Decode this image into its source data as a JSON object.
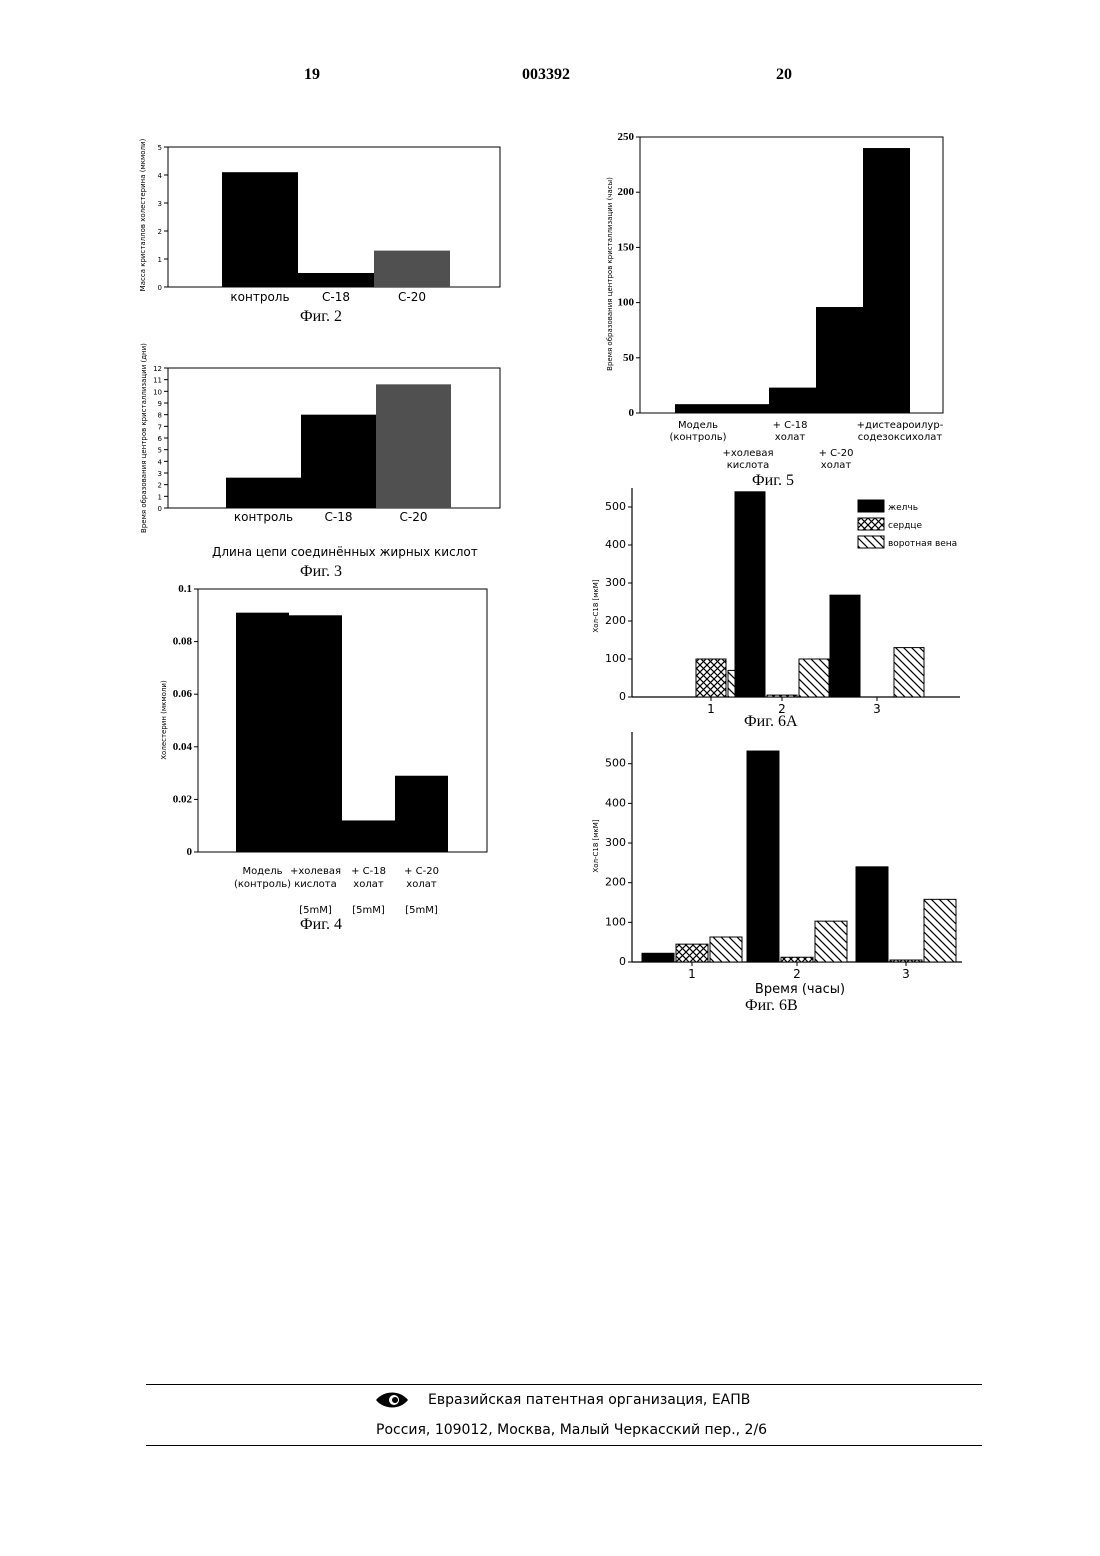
{
  "header": {
    "page_left": "19",
    "patent_number": "003392",
    "page_right": "20"
  },
  "captions": {
    "fig2": "Фиг. 2",
    "fig3": "Фиг. 3",
    "fig3_xlabel": "Длина цепи соединённых жирных кислот",
    "fig4": "Фиг. 4",
    "fig5": "Фиг. 5",
    "fig6a": "Фиг. 6А",
    "fig6b": "Фиг. 6В"
  },
  "footer": {
    "org": "Евразийская патентная организация, ЕАПВ",
    "address": "Россия, 109012, Москва, Малый Черкасский пер., 2/6"
  },
  "colors": {
    "bar": "#000000",
    "bar_gray": "#505050",
    "axis": "#000000"
  },
  "chart_data": [
    {
      "id": "fig2",
      "type": "bar",
      "ylabel": "Масса кристаллов холестерина (мкмоли)",
      "ylim": [
        0,
        5
      ],
      "yticks": [
        "0",
        "1",
        "2",
        "3",
        "4",
        "5"
      ],
      "categories": [
        "контроль",
        "C-18",
        "C-20"
      ],
      "values": [
        4.1,
        0.5,
        1.3
      ]
    },
    {
      "id": "fig3",
      "type": "bar",
      "ylabel": "Время образования центров кристаллизации (дни)",
      "xlabel": "Длина цепи соединённых жирных кислот",
      "ylim": [
        0,
        12
      ],
      "yticks": [
        "0",
        "1",
        "2",
        "3",
        "4",
        "5",
        "6",
        "7",
        "8",
        "9",
        "10",
        "11",
        "12"
      ],
      "categories": [
        "контроль",
        "C-18",
        "C-20"
      ],
      "values": [
        2.6,
        8,
        10.6
      ]
    },
    {
      "id": "fig4",
      "type": "bar",
      "ylabel": "Холестерин (мкмоли)",
      "ylim": [
        0,
        0.1
      ],
      "yticks": [
        "0",
        "0.02",
        "0.04",
        "0.06",
        "0.08",
        "0.1"
      ],
      "categories": [
        "Модель (контроль)",
        "+холевая кислота",
        "+ C-18 холат",
        "+ C-20 холат"
      ],
      "category_lines": [
        [
          "Модель",
          "(контроль)"
        ],
        [
          "+холевая",
          "кислота"
        ],
        [
          "+ C-18",
          "холат"
        ],
        [
          "+ C-20",
          "холат"
        ]
      ],
      "sublabels": [
        "",
        "[5mM]",
        "[5mM]",
        "[5mM]"
      ],
      "values": [
        0.091,
        0.09,
        0.012,
        0.029
      ]
    },
    {
      "id": "fig5",
      "type": "bar",
      "ylabel": "Время образования центров кристаллизации (часы)",
      "ylim": [
        0,
        250
      ],
      "yticks": [
        "0",
        "50",
        "100",
        "150",
        "200",
        "250"
      ],
      "categories": [
        "Модель (контроль)",
        "+холевая кислота",
        "+ C-18 холат",
        "+ C-20 холат",
        "+дистеароилур-содезоксихолат"
      ],
      "category_lines": [
        [
          "Модель",
          "(контроль)"
        ],
        [
          "+холевая",
          "кислота"
        ],
        [
          "+ C-18",
          "холат"
        ],
        [
          "+ C-20",
          "холат"
        ],
        [
          "+дистеароилур-",
          "содезоксихолат"
        ]
      ],
      "values": [
        8,
        8,
        23,
        96,
        240
      ]
    },
    {
      "id": "fig6a",
      "type": "bar",
      "ylabel": "Хол-C18 [мкМ]",
      "ylim": [
        0,
        550
      ],
      "yticks": [
        "0",
        "100",
        "200",
        "300",
        "400",
        "500"
      ],
      "categories": [
        "1",
        "2",
        "3"
      ],
      "legend": [
        "желчь",
        "сердце",
        "воротная вена"
      ],
      "series": [
        {
          "name": "желчь",
          "values": [
            0,
            540,
            268
          ]
        },
        {
          "name": "сердце",
          "values": [
            100,
            5,
            0
          ]
        },
        {
          "name": "воротная вена",
          "values": [
            70,
            100,
            130
          ]
        }
      ]
    },
    {
      "id": "fig6b",
      "type": "bar",
      "ylabel": "Хол-C18 [мкМ]",
      "xlabel": "Время (часы)",
      "ylim": [
        0,
        580
      ],
      "yticks": [
        "0",
        "100",
        "200",
        "300",
        "400",
        "500"
      ],
      "categories": [
        "1",
        "2",
        "3"
      ],
      "series": [
        {
          "name": "желчь",
          "values": [
            22,
            532,
            240
          ]
        },
        {
          "name": "сердце",
          "values": [
            45,
            12,
            5
          ]
        },
        {
          "name": "воротная вена",
          "values": [
            63,
            103,
            158
          ]
        }
      ]
    }
  ]
}
